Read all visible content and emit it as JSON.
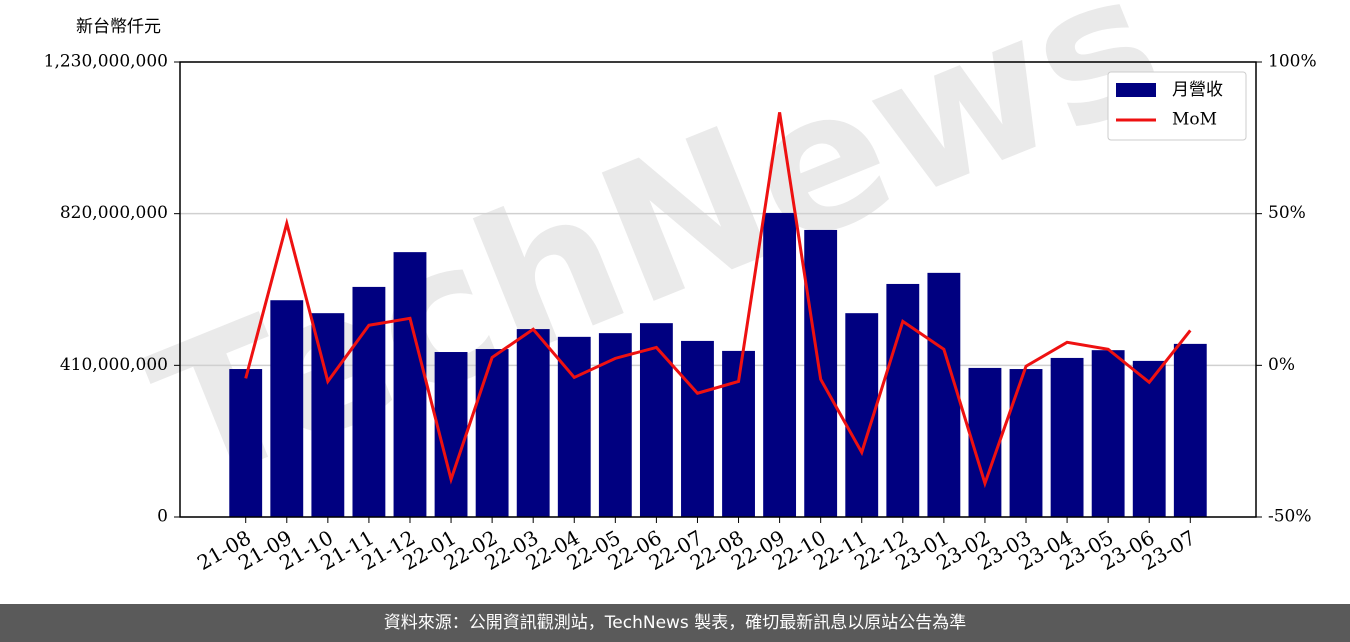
{
  "chart_data": {
    "type": "bar-line",
    "unit_label": "新台幣仟元",
    "watermark": "TechNews",
    "categories": [
      "21-08",
      "21-09",
      "21-10",
      "21-11",
      "21-12",
      "22-01",
      "22-02",
      "22-03",
      "22-04",
      "22-05",
      "22-06",
      "22-07",
      "22-08",
      "22-09",
      "22-10",
      "22-11",
      "22-12",
      "23-01",
      "23-02",
      "23-03",
      "23-04",
      "23-05",
      "23-06",
      "23-07"
    ],
    "series": [
      {
        "name": "月營收",
        "type": "bar",
        "color": "#000080",
        "values": [
          400000000,
          586000000,
          551000000,
          622000000,
          716000000,
          446000000,
          454000000,
          508000000,
          487000000,
          497000000,
          524000000,
          476000000,
          449000000,
          822000000,
          776000000,
          551000000,
          630000000,
          660000000,
          403000000,
          400000000,
          430000000,
          451000000,
          422000000,
          468000000
        ]
      },
      {
        "name": "MoM",
        "type": "line",
        "color": "#ee1111",
        "axis": "y2",
        "values": [
          -4.3,
          46.8,
          -5.3,
          13.2,
          15.5,
          -37.6,
          2.6,
          11.9,
          -4.0,
          2.3,
          5.9,
          -9.2,
          -5.3,
          83.4,
          -4.6,
          -28.7,
          14.5,
          5.3,
          -38.9,
          -0.3,
          7.6,
          5.3,
          -5.6,
          11.5
        ]
      }
    ],
    "ylim": [
      0,
      1230000000
    ],
    "yticks": [
      0,
      {
        "value": 410000000,
        "label": "410,000,000"
      },
      {
        "value": 820000000,
        "label": "820,000,000"
      },
      {
        "value": 1230000000,
        "label": "1,230,000,000"
      }
    ],
    "y2lim": [
      -50,
      100
    ],
    "y2ticks": [
      {
        "value": -50,
        "label": "-50%"
      },
      {
        "value": 0,
        "label": "0%"
      },
      {
        "value": 50,
        "label": "50%"
      },
      {
        "value": 100,
        "label": "100%"
      }
    ],
    "grid": true,
    "legend": "upper right"
  },
  "footer": "資料來源：公開資訊觀測站，TechNews 製表，確切最新訊息以原站公告為準"
}
